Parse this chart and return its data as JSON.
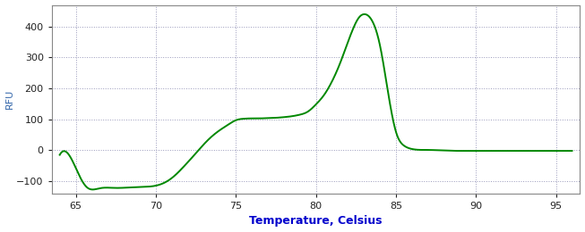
{
  "title": "",
  "xlabel": "Temperature, Celsius",
  "ylabel": "RFU",
  "xlim": [
    63.5,
    96.5
  ],
  "ylim": [
    -140,
    470
  ],
  "xticks": [
    65,
    70,
    75,
    80,
    85,
    90,
    95
  ],
  "yticks": [
    -100,
    0,
    100,
    200,
    300,
    400
  ],
  "line_color": "#008800",
  "bg_color": "#ffffff",
  "grid_color": "#9999bb",
  "xlabel_color": "#0000cc",
  "ylabel_color": "#3366aa",
  "line_width": 1.4,
  "control_x": [
    64.0,
    64.8,
    65.3,
    65.7,
    66.5,
    67.5,
    68.5,
    69.5,
    70.2,
    71.0,
    71.8,
    72.5,
    73.2,
    74.0,
    74.5,
    75.0,
    75.5,
    76.0,
    76.5,
    77.0,
    77.5,
    78.0,
    78.5,
    79.0,
    79.5,
    80.0,
    80.5,
    81.0,
    81.5,
    82.0,
    82.3,
    82.7,
    83.0,
    83.5,
    84.0,
    84.5,
    85.0,
    85.5,
    86.0,
    87.0,
    88.0,
    90.0,
    92.0,
    95.0,
    96.0
  ],
  "control_y": [
    -15,
    -35,
    -90,
    -120,
    -123,
    -122,
    -120,
    -118,
    -112,
    -90,
    -50,
    -10,
    30,
    65,
    82,
    97,
    102,
    103,
    103,
    104,
    105,
    107,
    110,
    115,
    125,
    148,
    178,
    222,
    280,
    350,
    390,
    430,
    440,
    420,
    340,
    190,
    60,
    15,
    4,
    1,
    -1,
    -2,
    -2,
    -2,
    -2
  ]
}
